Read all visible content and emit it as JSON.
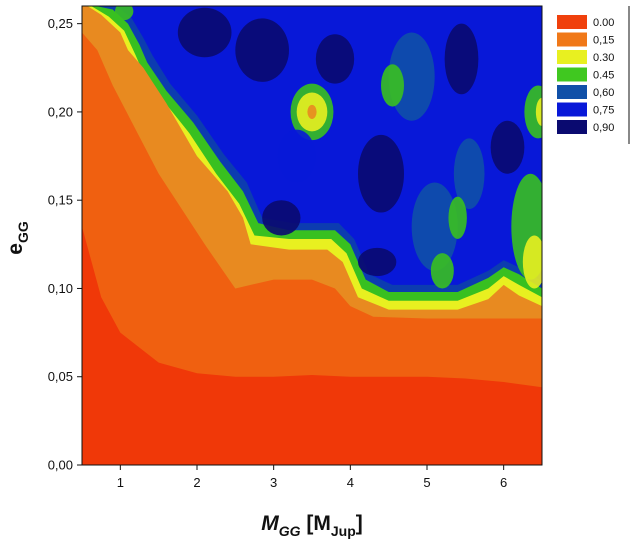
{
  "chart_data": {
    "type": "heatmap",
    "subtype": "filled-contour",
    "xlabel": {
      "main": "M",
      "sub": "GG",
      "unit_open": " [M",
      "unit_sub": "Jup",
      "unit_close": "]"
    },
    "ylabel": {
      "main": "e",
      "sub": "GG"
    },
    "xlim": [
      0.5,
      6.5
    ],
    "ylim": [
      0.0,
      0.26
    ],
    "x_ticks": [
      1,
      2,
      3,
      4,
      5,
      6
    ],
    "x_tick_labels": [
      "1",
      "2",
      "3",
      "4",
      "5",
      "6"
    ],
    "y_ticks": [
      0.0,
      0.05,
      0.1,
      0.15,
      0.2,
      0.25
    ],
    "y_tick_labels": [
      "0,00",
      "0,05",
      "0,10",
      "0,15",
      "0,20",
      "0,25"
    ],
    "legend": {
      "placement": "top-right",
      "levels": [
        0.0,
        0.15,
        0.3,
        0.45,
        0.6,
        0.75,
        0.9
      ],
      "labels": [
        "0.00",
        "0,15",
        "0.30",
        "0.45",
        "0,60",
        "0,75",
        "0,90"
      ],
      "colors": [
        "#f0400c",
        "#f07818",
        "#e8f020",
        "#40c820",
        "#1050a8",
        "#0818d8",
        "#0a0a70"
      ]
    },
    "bands": [
      {
        "level": 0.0,
        "color": "#f03808",
        "boundary": [
          [
            0.5,
            0.135
          ],
          [
            0.75,
            0.095
          ],
          [
            1.0,
            0.075
          ],
          [
            1.5,
            0.058
          ],
          [
            2.0,
            0.052
          ],
          [
            2.5,
            0.05
          ],
          [
            3.0,
            0.05
          ],
          [
            3.5,
            0.051
          ],
          [
            4.0,
            0.05
          ],
          [
            4.5,
            0.05
          ],
          [
            5.0,
            0.05
          ],
          [
            5.5,
            0.049
          ],
          [
            6.0,
            0.047
          ],
          [
            6.5,
            0.044
          ]
        ]
      },
      {
        "level": 0.075,
        "color": "#f06010",
        "boundary": [
          [
            0.5,
            0.245
          ],
          [
            0.7,
            0.235
          ],
          [
            0.9,
            0.215
          ],
          [
            1.2,
            0.19
          ],
          [
            1.5,
            0.165
          ],
          [
            1.8,
            0.145
          ],
          [
            2.1,
            0.125
          ],
          [
            2.5,
            0.1
          ],
          [
            3.0,
            0.105
          ],
          [
            3.5,
            0.105
          ],
          [
            3.8,
            0.1
          ],
          [
            4.0,
            0.09
          ],
          [
            4.3,
            0.084
          ],
          [
            5.0,
            0.083
          ],
          [
            5.5,
            0.083
          ],
          [
            6.0,
            0.083
          ],
          [
            6.5,
            0.083
          ]
        ]
      },
      {
        "level": 0.15,
        "color": "#e88a20",
        "boundary": [
          [
            0.57,
            0.26
          ],
          [
            0.75,
            0.255
          ],
          [
            1.0,
            0.245
          ],
          [
            1.1,
            0.235
          ],
          [
            1.3,
            0.225
          ],
          [
            1.6,
            0.205
          ],
          [
            2.0,
            0.175
          ],
          [
            2.4,
            0.155
          ],
          [
            2.6,
            0.14
          ],
          [
            2.7,
            0.125
          ],
          [
            3.2,
            0.122
          ],
          [
            3.7,
            0.122
          ],
          [
            3.9,
            0.115
          ],
          [
            4.1,
            0.095
          ],
          [
            4.5,
            0.088
          ],
          [
            5.0,
            0.088
          ],
          [
            5.4,
            0.088
          ],
          [
            5.8,
            0.094
          ],
          [
            6.0,
            0.102
          ],
          [
            6.2,
            0.096
          ],
          [
            6.5,
            0.09
          ]
        ]
      },
      {
        "level": 0.3,
        "color": "#e8f020",
        "boundary": [
          [
            0.62,
            0.26
          ],
          [
            0.85,
            0.254
          ],
          [
            1.05,
            0.246
          ],
          [
            1.2,
            0.232
          ],
          [
            1.3,
            0.222
          ],
          [
            1.55,
            0.207
          ],
          [
            1.9,
            0.188
          ],
          [
            2.25,
            0.165
          ],
          [
            2.55,
            0.148
          ],
          [
            2.75,
            0.13
          ],
          [
            3.2,
            0.128
          ],
          [
            3.75,
            0.128
          ],
          [
            3.95,
            0.12
          ],
          [
            4.15,
            0.1
          ],
          [
            4.5,
            0.093
          ],
          [
            5.0,
            0.093
          ],
          [
            5.4,
            0.093
          ],
          [
            5.8,
            0.1
          ],
          [
            6.0,
            0.107
          ],
          [
            6.2,
            0.102
          ],
          [
            6.5,
            0.095
          ]
        ]
      },
      {
        "level": 0.45,
        "color": "#38c020",
        "boundary": [
          [
            0.68,
            0.26
          ],
          [
            0.9,
            0.258
          ],
          [
            1.1,
            0.25
          ],
          [
            1.25,
            0.238
          ],
          [
            1.35,
            0.228
          ],
          [
            1.6,
            0.212
          ],
          [
            1.95,
            0.194
          ],
          [
            2.3,
            0.172
          ],
          [
            2.6,
            0.155
          ],
          [
            2.8,
            0.137
          ],
          [
            3.2,
            0.133
          ],
          [
            3.8,
            0.133
          ],
          [
            4.0,
            0.125
          ],
          [
            4.2,
            0.105
          ],
          [
            4.5,
            0.098
          ],
          [
            5.0,
            0.098
          ],
          [
            5.4,
            0.098
          ],
          [
            5.8,
            0.106
          ],
          [
            6.0,
            0.112
          ],
          [
            6.2,
            0.108
          ],
          [
            6.5,
            0.1
          ]
        ]
      },
      {
        "level": 0.6,
        "color": "#0c3cb0",
        "boundary": [
          [
            0.74,
            0.26
          ],
          [
            0.95,
            0.26
          ],
          [
            1.15,
            0.253
          ],
          [
            1.3,
            0.242
          ],
          [
            1.42,
            0.232
          ],
          [
            1.65,
            0.216
          ],
          [
            2.0,
            0.198
          ],
          [
            2.35,
            0.176
          ],
          [
            2.65,
            0.16
          ],
          [
            2.85,
            0.14
          ],
          [
            3.25,
            0.137
          ],
          [
            3.85,
            0.137
          ],
          [
            4.05,
            0.128
          ],
          [
            4.25,
            0.108
          ],
          [
            4.55,
            0.102
          ],
          [
            5.0,
            0.102
          ],
          [
            5.4,
            0.102
          ],
          [
            5.8,
            0.11
          ],
          [
            6.0,
            0.116
          ],
          [
            6.2,
            0.112
          ],
          [
            6.5,
            0.104
          ]
        ]
      }
    ],
    "blobs": [
      {
        "cx": 3.5,
        "cy": 0.2,
        "rx": 0.28,
        "ry": 0.016,
        "color": "#38c020"
      },
      {
        "cx": 3.5,
        "cy": 0.2,
        "rx": 0.2,
        "ry": 0.011,
        "color": "#e8f020"
      },
      {
        "cx": 3.5,
        "cy": 0.2,
        "rx": 0.06,
        "ry": 0.004,
        "color": "#e88a20"
      },
      {
        "cx": 3.3,
        "cy": 0.175,
        "rx": 0.25,
        "ry": 0.015,
        "color": "#0818d8"
      },
      {
        "cx": 2.1,
        "cy": 0.245,
        "rx": 0.35,
        "ry": 0.014,
        "color": "#0a0a70"
      },
      {
        "cx": 2.85,
        "cy": 0.235,
        "rx": 0.35,
        "ry": 0.018,
        "color": "#0a0a70"
      },
      {
        "cx": 3.8,
        "cy": 0.23,
        "rx": 0.25,
        "ry": 0.014,
        "color": "#0a0a70"
      },
      {
        "cx": 4.4,
        "cy": 0.165,
        "rx": 0.3,
        "ry": 0.022,
        "color": "#0a0a70"
      },
      {
        "cx": 3.1,
        "cy": 0.14,
        "rx": 0.25,
        "ry": 0.01,
        "color": "#0a0a70"
      },
      {
        "cx": 5.45,
        "cy": 0.23,
        "rx": 0.22,
        "ry": 0.02,
        "color": "#0a0a70"
      },
      {
        "cx": 6.05,
        "cy": 0.18,
        "rx": 0.22,
        "ry": 0.015,
        "color": "#0a0a70"
      },
      {
        "cx": 4.35,
        "cy": 0.115,
        "rx": 0.25,
        "ry": 0.008,
        "color": "#0a0a70"
      },
      {
        "cx": 4.8,
        "cy": 0.22,
        "rx": 0.3,
        "ry": 0.025,
        "color": "#1050a8"
      },
      {
        "cx": 4.55,
        "cy": 0.215,
        "rx": 0.15,
        "ry": 0.012,
        "color": "#38c020"
      },
      {
        "cx": 5.1,
        "cy": 0.135,
        "rx": 0.3,
        "ry": 0.025,
        "color": "#1050a8"
      },
      {
        "cx": 5.2,
        "cy": 0.11,
        "rx": 0.15,
        "ry": 0.01,
        "color": "#38c020"
      },
      {
        "cx": 5.55,
        "cy": 0.165,
        "rx": 0.2,
        "ry": 0.02,
        "color": "#1050a8"
      },
      {
        "cx": 5.4,
        "cy": 0.14,
        "rx": 0.12,
        "ry": 0.012,
        "color": "#38c020"
      },
      {
        "cx": 6.35,
        "cy": 0.135,
        "rx": 0.25,
        "ry": 0.03,
        "color": "#38c020"
      },
      {
        "cx": 6.4,
        "cy": 0.115,
        "rx": 0.15,
        "ry": 0.015,
        "color": "#e8f020"
      },
      {
        "cx": 6.45,
        "cy": 0.2,
        "rx": 0.18,
        "ry": 0.015,
        "color": "#38c020"
      },
      {
        "cx": 6.5,
        "cy": 0.2,
        "rx": 0.08,
        "ry": 0.008,
        "color": "#e8f020"
      },
      {
        "cx": 1.05,
        "cy": 0.257,
        "rx": 0.12,
        "ry": 0.005,
        "color": "#38c020"
      }
    ]
  }
}
